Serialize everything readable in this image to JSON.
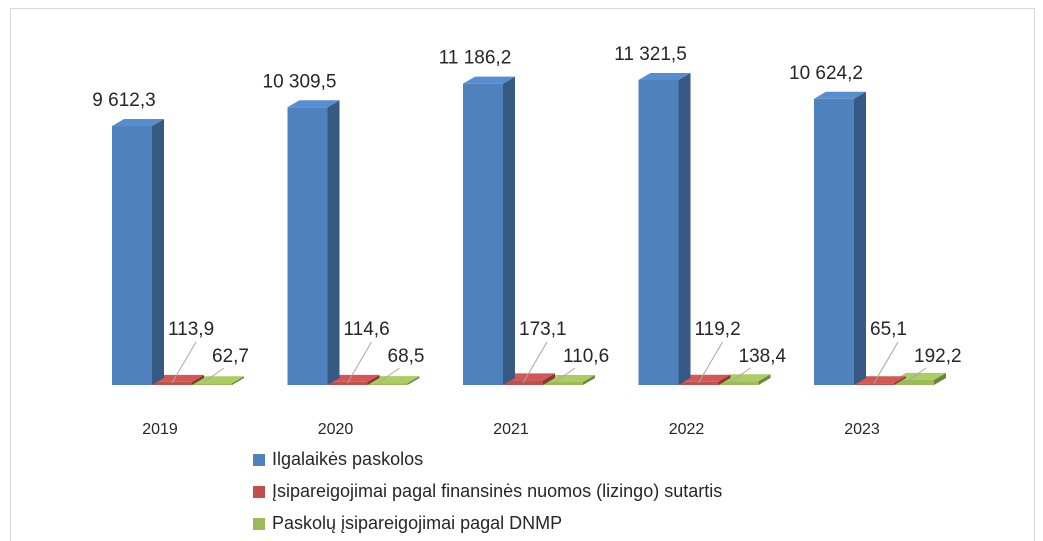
{
  "chart_data": {
    "type": "bar3d",
    "categories": [
      "2019",
      "2020",
      "2021",
      "2022",
      "2023"
    ],
    "series": [
      {
        "name": "Ilgalaikės paskolos",
        "color": "#4f81bd",
        "values": [
          9612.3,
          10309.5,
          11186.2,
          11321.5,
          10624.2
        ],
        "value_labels": [
          "9 612,3",
          "10 309,5",
          "11 186,2",
          "11 321,5",
          "10 624,2"
        ]
      },
      {
        "name": "Įsipareigojimai pagal finansinės nuomos (lizingo) sutartis",
        "color": "#c0504d",
        "values": [
          113.9,
          114.6,
          173.1,
          119.2,
          65.1
        ],
        "value_labels": [
          "113,9",
          "114,6",
          "173,1",
          "119,2",
          "65,1"
        ]
      },
      {
        "name": "Paskolų įsipareigojimai pagal DNMP",
        "color": "#9bbb59",
        "values": [
          62.7,
          68.5,
          110.6,
          138.4,
          192.2
        ],
        "value_labels": [
          "62,7",
          "68,5",
          "110,6",
          "138,4",
          "192,2"
        ]
      }
    ],
    "legend": "bottom"
  }
}
